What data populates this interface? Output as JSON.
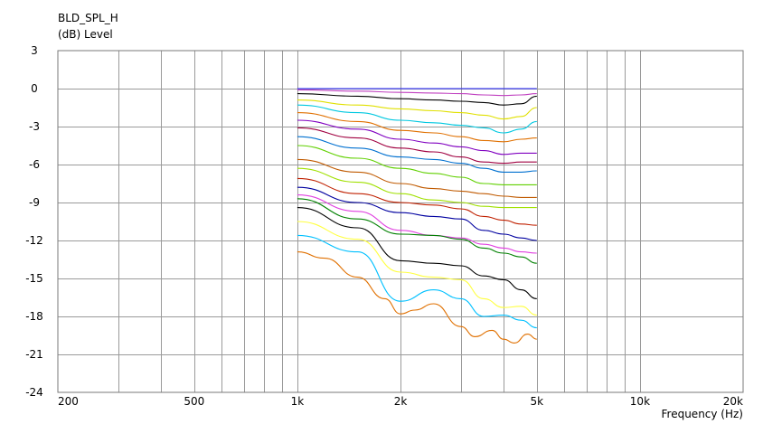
{
  "chart_data": {
    "type": "line",
    "title": "BLD_SPL_H",
    "ylabel": "(dB)  Level",
    "xlabel": "Frequency  (Hz)",
    "xscale": "log",
    "xlim": [
      200,
      20000
    ],
    "ylim": [
      -24,
      3
    ],
    "grid": true,
    "legend": "none",
    "x_ticks": [
      200,
      500,
      1000,
      2000,
      5000,
      10000,
      20000
    ],
    "x_tick_labels": [
      "200",
      "500",
      "1k",
      "2k",
      "5k",
      "10k",
      "20k"
    ],
    "y_ticks": [
      3,
      0,
      -3,
      -6,
      -9,
      -12,
      -15,
      -18,
      -21,
      -24
    ],
    "y_tick_labels": [
      "3",
      "0",
      "-3",
      "-6",
      "-9",
      "-12",
      "-15",
      "-18",
      "-21",
      "-24"
    ],
    "series": [
      {
        "color": "#2020ff",
        "x": [
          1000,
          2000,
          3000,
          4000,
          5000
        ],
        "y": [
          0.0,
          0.0,
          0.0,
          0.0,
          0.0
        ]
      },
      {
        "color": "#c040c0",
        "x": [
          1000,
          1500,
          2000,
          2500,
          3000,
          3500,
          4000,
          4500,
          5000
        ],
        "y": [
          -0.1,
          -0.2,
          -0.3,
          -0.35,
          -0.4,
          -0.5,
          -0.55,
          -0.5,
          -0.4
        ]
      },
      {
        "color": "#000000",
        "x": [
          1000,
          1500,
          2000,
          2500,
          3000,
          3500,
          4000,
          4500,
          5000
        ],
        "y": [
          -0.4,
          -0.6,
          -0.8,
          -0.9,
          -1.0,
          -1.1,
          -1.3,
          -1.2,
          -0.6
        ]
      },
      {
        "color": "#e0e000",
        "x": [
          1000,
          1500,
          2000,
          2500,
          3000,
          3500,
          4000,
          4500,
          5000
        ],
        "y": [
          -0.9,
          -1.3,
          -1.6,
          -1.75,
          -1.9,
          -2.1,
          -2.4,
          -2.2,
          -1.5
        ]
      },
      {
        "color": "#00c8e0",
        "x": [
          1000,
          1500,
          2000,
          2500,
          3000,
          3500,
          4000,
          4500,
          5000
        ],
        "y": [
          -1.3,
          -1.9,
          -2.5,
          -2.7,
          -2.9,
          -3.1,
          -3.5,
          -3.2,
          -2.6
        ]
      },
      {
        "color": "#e07000",
        "x": [
          1000,
          1500,
          2000,
          2500,
          3000,
          3500,
          4000,
          4500,
          5000
        ],
        "y": [
          -1.9,
          -2.6,
          -3.3,
          -3.5,
          -3.8,
          -4.1,
          -4.2,
          -4.0,
          -3.9
        ]
      },
      {
        "color": "#8000c0",
        "x": [
          1000,
          1500,
          2000,
          2500,
          3000,
          3500,
          4000,
          4500,
          5000
        ],
        "y": [
          -2.5,
          -3.2,
          -4.0,
          -4.3,
          -4.6,
          -4.9,
          -5.2,
          -5.1,
          -5.1
        ]
      },
      {
        "color": "#a00040",
        "x": [
          1000,
          1500,
          2000,
          2500,
          3000,
          3500,
          4000,
          4500,
          5000
        ],
        "y": [
          -3.1,
          -3.9,
          -4.7,
          -5.0,
          -5.4,
          -5.8,
          -5.9,
          -5.8,
          -5.8
        ]
      },
      {
        "color": "#0070d0",
        "x": [
          1000,
          1500,
          2000,
          2500,
          3000,
          3500,
          4000,
          4500,
          5000
        ],
        "y": [
          -3.8,
          -4.7,
          -5.4,
          -5.6,
          -5.9,
          -6.3,
          -6.6,
          -6.6,
          -6.5
        ]
      },
      {
        "color": "#60d000",
        "x": [
          1000,
          1500,
          2000,
          2500,
          3000,
          3500,
          4000,
          4500,
          5000
        ],
        "y": [
          -4.5,
          -5.5,
          -6.3,
          -6.7,
          -7.0,
          -7.5,
          -7.6,
          -7.6,
          -7.6
        ]
      },
      {
        "color": "#c05a00",
        "x": [
          1000,
          1500,
          2000,
          2500,
          3000,
          3500,
          4000,
          4500,
          5000
        ],
        "y": [
          -5.6,
          -6.6,
          -7.5,
          -7.9,
          -8.1,
          -8.3,
          -8.5,
          -8.6,
          -8.6
        ]
      },
      {
        "color": "#a0e000",
        "x": [
          1000,
          1500,
          2000,
          2500,
          3000,
          3500,
          4000,
          4500,
          5000
        ],
        "y": [
          -6.3,
          -7.4,
          -8.3,
          -8.8,
          -9.0,
          -9.3,
          -9.4,
          -9.4,
          -9.4
        ]
      },
      {
        "color": "#c02000",
        "x": [
          1000,
          1500,
          2000,
          2500,
          3000,
          3500,
          4000,
          4500,
          5000
        ],
        "y": [
          -7.1,
          -8.3,
          -9.0,
          -9.2,
          -9.5,
          -10.1,
          -10.4,
          -10.7,
          -10.8
        ]
      },
      {
        "color": "#0000a0",
        "x": [
          1000,
          1500,
          2000,
          2500,
          3000,
          3500,
          4000,
          4500,
          5000
        ],
        "y": [
          -7.8,
          -9.0,
          -9.8,
          -10.1,
          -10.3,
          -11.2,
          -11.5,
          -11.8,
          -12.0
        ]
      },
      {
        "color": "#e040e0",
        "x": [
          1000,
          1500,
          2000,
          2500,
          3000,
          3500,
          4000,
          4500,
          5000
        ],
        "y": [
          -8.4,
          -9.7,
          -11.2,
          -11.6,
          -11.8,
          -12.3,
          -12.6,
          -12.9,
          -13.0
        ]
      },
      {
        "color": "#008000",
        "x": [
          1000,
          1500,
          2000,
          2500,
          3000,
          3500,
          4000,
          4500,
          5000
        ],
        "y": [
          -8.7,
          -10.3,
          -11.5,
          -11.6,
          -11.9,
          -12.6,
          -13.0,
          -13.3,
          -13.8
        ]
      },
      {
        "color": "#000000",
        "x": [
          1000,
          1500,
          2000,
          2500,
          3000,
          3500,
          4000,
          4500,
          5000
        ],
        "y": [
          -9.4,
          -11.0,
          -13.6,
          -13.8,
          -14.0,
          -14.8,
          -15.1,
          -15.9,
          -16.6
        ]
      },
      {
        "color": "#ffff40",
        "x": [
          1000,
          1500,
          2000,
          2500,
          3000,
          3500,
          4000,
          4500,
          5000
        ],
        "y": [
          -10.5,
          -11.9,
          -14.5,
          -14.9,
          -15.1,
          -16.6,
          -17.3,
          -17.2,
          -17.9
        ]
      },
      {
        "color": "#00c0ff",
        "x": [
          1000,
          1500,
          2000,
          2500,
          3000,
          3500,
          4000,
          4500,
          5000
        ],
        "y": [
          -11.6,
          -12.9,
          -16.8,
          -15.9,
          -16.6,
          -18.0,
          -17.9,
          -18.3,
          -18.9
        ]
      },
      {
        "color": "#e07000",
        "x": [
          1000,
          1200,
          1500,
          1800,
          2000,
          2200,
          2500,
          3000,
          3300,
          3700,
          4000,
          4300,
          4700,
          5000
        ],
        "y": [
          -12.9,
          -13.4,
          -14.9,
          -16.6,
          -17.8,
          -17.5,
          -17.0,
          -18.8,
          -19.6,
          -19.1,
          -19.8,
          -20.1,
          -19.4,
          -19.8
        ]
      }
    ]
  }
}
